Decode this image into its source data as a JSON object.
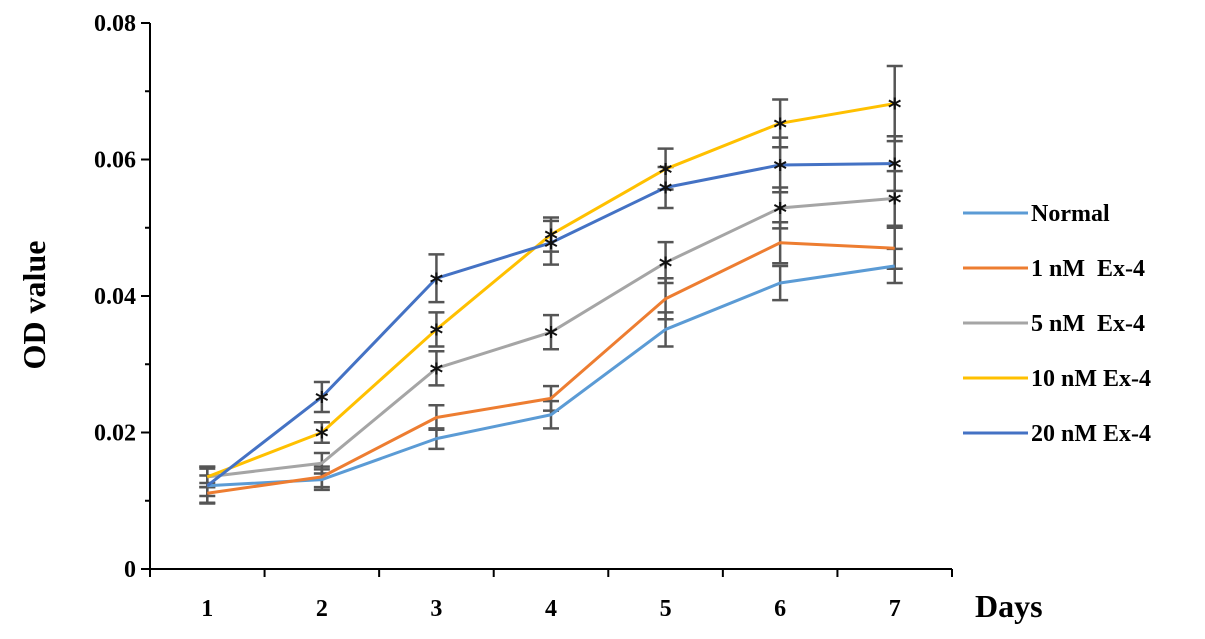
{
  "chart_data": {
    "type": "line",
    "title": "",
    "xlabel": "Days",
    "ylabel": "OD value",
    "x": [
      1,
      2,
      3,
      4,
      5,
      6,
      7
    ],
    "x_tick_labels": [
      "1",
      "2",
      "3",
      "4",
      "5",
      "6",
      "7"
    ],
    "ylim": [
      0,
      0.08
    ],
    "y_ticks": [
      0,
      0.02,
      0.04,
      0.06,
      0.08
    ],
    "y_tick_labels": [
      "0",
      "0.02",
      "0.04",
      "0.06",
      "0.08"
    ],
    "grid": false,
    "legend_position": "right",
    "significance_marker": "*",
    "series": [
      {
        "name": "Normal",
        "color": "#5b9bd5",
        "values": [
          0.0122,
          0.0131,
          0.0191,
          0.0226,
          0.0351,
          0.0419,
          0.0444
        ],
        "errors": [
          0.0025,
          0.0015,
          0.0015,
          0.002,
          0.0025,
          0.0025,
          0.0025
        ],
        "significant": [
          false,
          false,
          false,
          false,
          false,
          false,
          false
        ]
      },
      {
        "name": "1 nM  Ex-4",
        "color": "#ed7d31",
        "values": [
          0.0111,
          0.0135,
          0.0222,
          0.025,
          0.0396,
          0.0478,
          0.047
        ],
        "errors": [
          0.0015,
          0.0015,
          0.0018,
          0.0018,
          0.003,
          0.003,
          0.003
        ],
        "significant": [
          false,
          false,
          false,
          false,
          false,
          false,
          false
        ]
      },
      {
        "name": "5 nM  Ex-4",
        "color": "#a5a5a5",
        "values": [
          0.0135,
          0.0155,
          0.0294,
          0.0347,
          0.0449,
          0.0529,
          0.0543
        ],
        "errors": [
          0.0015,
          0.0015,
          0.0025,
          0.0025,
          0.003,
          0.003,
          0.004
        ],
        "significant": [
          false,
          false,
          true,
          true,
          true,
          true,
          true
        ]
      },
      {
        "name": "10 nM Ex-4",
        "color": "#ffc000",
        "values": [
          0.0135,
          0.02,
          0.0351,
          0.049,
          0.0586,
          0.0653,
          0.0682
        ],
        "errors": [
          0.0015,
          0.0015,
          0.0025,
          0.0025,
          0.003,
          0.0035,
          0.0055
        ],
        "significant": [
          false,
          true,
          true,
          true,
          true,
          true,
          true
        ]
      },
      {
        "name": "20 nM Ex-4",
        "color": "#4472c4",
        "values": [
          0.0122,
          0.0252,
          0.0426,
          0.0478,
          0.0559,
          0.0592,
          0.0594
        ],
        "errors": [
          0.0015,
          0.0022,
          0.0035,
          0.0032,
          0.003,
          0.004,
          0.004
        ],
        "significant": [
          false,
          true,
          true,
          true,
          true,
          true,
          true
        ]
      }
    ]
  }
}
